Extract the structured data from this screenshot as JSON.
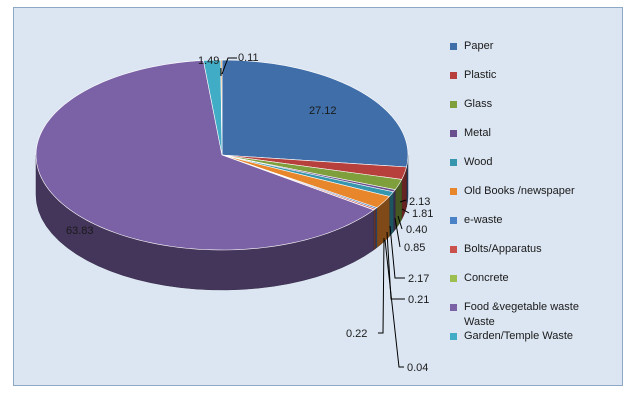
{
  "chart_data": {
    "type": "pie",
    "title": "",
    "slices": [
      {
        "label": "Paper",
        "value": 27.12,
        "value_label": "27.12",
        "color": "#3f6ea8"
      },
      {
        "label": "Plastic",
        "value": 2.13,
        "value_label": "2.13",
        "color": "#b7403d"
      },
      {
        "label": "Glass",
        "value": 1.81,
        "value_label": "1.81",
        "color": "#7f9f3c"
      },
      {
        "label": "Metal",
        "value": 0.4,
        "value_label": "0.40",
        "color": "#6a4f8e"
      },
      {
        "label": "Wood",
        "value": 0.85,
        "value_label": "0.85",
        "color": "#3696ae"
      },
      {
        "label": "Old Books /newspaper",
        "value": 2.17,
        "value_label": "2.17",
        "color": "#e8862c"
      },
      {
        "label": "e-waste",
        "value": 0.21,
        "value_label": "0.21",
        "color": "#4a82c8"
      },
      {
        "label": "Bolts/Apparatus",
        "value": 0.22,
        "value_label": "0.22",
        "color": "#c9504b"
      },
      {
        "label": "Concrete",
        "value": 0.04,
        "value_label": "0.04",
        "color": "#9cbf50"
      },
      {
        "label": "Food &vegetable waste Waste",
        "value": 63.83,
        "value_label": "63.83",
        "color": "#7b61a5"
      },
      {
        "label": "Garden/Temple Waste",
        "value": 1.49,
        "value_label": "1.49",
        "color": "#41acc6"
      },
      {
        "label": "",
        "value": 0.11,
        "value_label": "0.11",
        "color": "#f0a050"
      }
    ],
    "legend": {
      "position": "right",
      "entries": [
        {
          "label": "Paper",
          "color": "#3f6ea8"
        },
        {
          "label": "Plastic",
          "color": "#b7403d"
        },
        {
          "label": "Glass",
          "color": "#7f9f3c"
        },
        {
          "label": "Metal",
          "color": "#6a4f8e"
        },
        {
          "label": "Wood",
          "color": "#3696ae"
        },
        {
          "label": "Old Books /newspaper",
          "color": "#e8862c"
        },
        {
          "label": "e-waste",
          "color": "#4a82c8"
        },
        {
          "label": "Bolts/Apparatus",
          "color": "#c9504b"
        },
        {
          "label": "Concrete",
          "color": "#9cbf50"
        },
        {
          "label": "Food &vegetable waste",
          "color": "#7b61a5"
        },
        {
          "label": "Waste",
          "color": ""
        },
        {
          "label": "Garden/Temple Waste",
          "color": "#41acc6"
        }
      ]
    },
    "style": "3d-pie",
    "background": "#dce6f2"
  }
}
